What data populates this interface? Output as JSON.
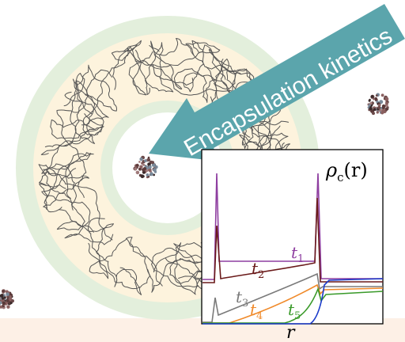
{
  "arrow": {
    "label": "Encapsulation kinetics",
    "color": "#5ba5ac"
  },
  "colors": {
    "shell_outer": "#e3efdc",
    "shell_core": "#fdf3dd",
    "polymer": "#555555",
    "particle": "#6b4a4a",
    "bottom_strip": "#fdf0e6"
  },
  "inset_plot": {
    "ylabel_symbol": "ρ",
    "ylabel_sub": "c",
    "ylabel_arg": "(r)",
    "xlabel": "r",
    "curves": [
      {
        "label": "t",
        "sub": "1",
        "color": "#8e3ea0"
      },
      {
        "label": "t",
        "sub": "2",
        "color": "#6a1a1a"
      },
      {
        "label": "t",
        "sub": "3",
        "color": "#7a7a7a"
      },
      {
        "label": "t",
        "sub": "4",
        "color": "#f08a2a"
      },
      {
        "label": "t",
        "sub": "5",
        "color": "#3a9a2a"
      },
      {
        "label": "",
        "sub": "",
        "color": "#1a3aca"
      }
    ]
  }
}
